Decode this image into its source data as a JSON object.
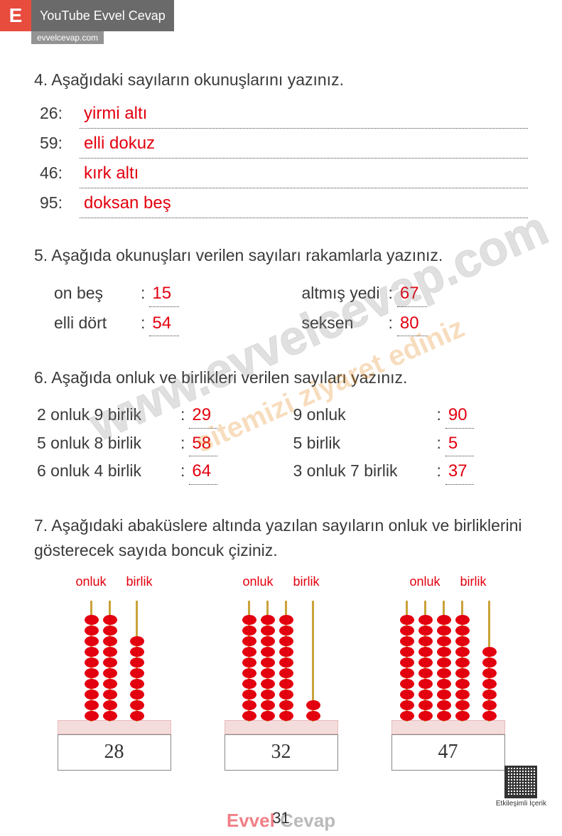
{
  "badge": {
    "letter": "E",
    "title": "YouTube Evvel Cevap",
    "sub": "evvelcevap.com"
  },
  "q4": {
    "prompt": "4. Aşağıdaki sayıların okunuşlarını yazınız.",
    "rows": [
      {
        "num": "26:",
        "ans": "yirmi altı"
      },
      {
        "num": "59:",
        "ans": "elli dokuz"
      },
      {
        "num": "46:",
        "ans": "kırk altı"
      },
      {
        "num": "95:",
        "ans": "doksan beş"
      }
    ]
  },
  "q5": {
    "prompt": "5. Aşağıda okunuşları verilen sayıları rakamlarla yazınız.",
    "left": [
      {
        "label": "on beş",
        "ans": "15"
      },
      {
        "label": "elli dört",
        "ans": "54"
      }
    ],
    "right": [
      {
        "label": "altmış yedi",
        "ans": "67"
      },
      {
        "label": "seksen",
        "ans": "80"
      }
    ]
  },
  "q6": {
    "prompt": "6. Aşağıda onluk ve birlikleri verilen sayıları yazınız.",
    "left": [
      {
        "label": "2 onluk 9 birlik",
        "ans": "29"
      },
      {
        "label": "5 onluk 8 birlik",
        "ans": "58"
      },
      {
        "label": "6 onluk 4 birlik",
        "ans": "64"
      }
    ],
    "right": [
      {
        "label": "9 onluk",
        "ans": "90"
      },
      {
        "label": "5 birlik",
        "ans": "5"
      },
      {
        "label": "3 onluk 7 birlik",
        "ans": "37"
      }
    ]
  },
  "q7": {
    "prompt": "7. Aşağıdaki abaküslere altında yazılan sayıların onluk ve birliklerini gösterecek sayıda boncuk çiziniz.",
    "label_onluk": "onluk",
    "label_birlik": "birlik",
    "items": [
      {
        "number": "28",
        "tens_rods": [
          10,
          10
        ],
        "ones_rods": [
          8
        ]
      },
      {
        "number": "32",
        "tens_rods": [
          10,
          10,
          10
        ],
        "ones_rods": [
          2
        ]
      },
      {
        "number": "47",
        "tens_rods": [
          10,
          10,
          10,
          10
        ],
        "ones_rods": [
          7
        ]
      }
    ]
  },
  "page_number": "31",
  "footer": {
    "a": "Evvel",
    "b": "Cevap"
  },
  "qr_label": "Etkileşimli İçerik",
  "watermark1": "www.evvelcevap.com",
  "watermark2": "sitemizi ziyaret ediniz",
  "colors": {
    "answer": "#e3000f",
    "text": "#3a3a3a",
    "bead": "#e3000f"
  }
}
